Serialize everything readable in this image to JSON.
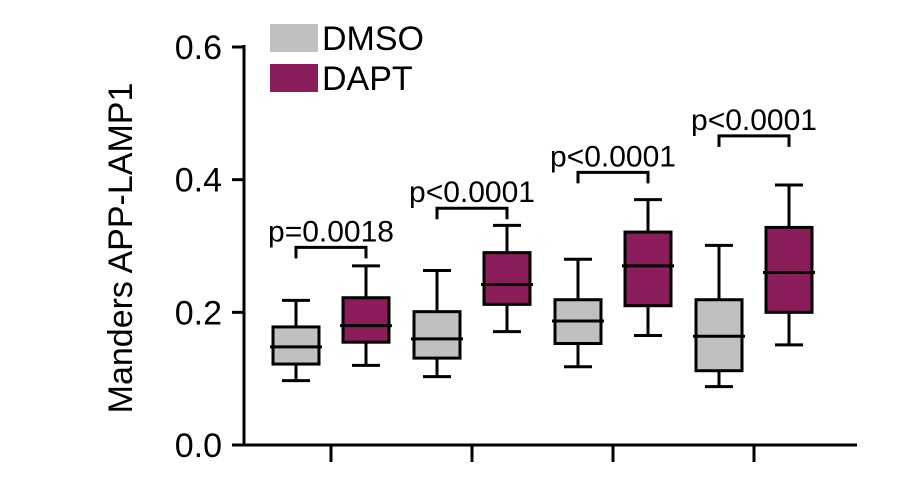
{
  "chart_data": {
    "type": "boxplot",
    "ylabel": "Manders APP-LAMP1",
    "xlabel": "",
    "ylim": [
      0.0,
      0.6
    ],
    "yticks": [
      0.0,
      0.2,
      0.4,
      0.6
    ],
    "ytick_labels": [
      "0.0",
      "0.2",
      "0.4",
      "0.6"
    ],
    "groups": 4,
    "series": [
      {
        "name": "DMSO",
        "color": "#c0c0c0",
        "boxes": [
          {
            "min": 0.097,
            "q1": 0.122,
            "median": 0.148,
            "q3": 0.178,
            "max": 0.218
          },
          {
            "min": 0.103,
            "q1": 0.131,
            "median": 0.16,
            "q3": 0.201,
            "max": 0.263
          },
          {
            "min": 0.118,
            "q1": 0.153,
            "median": 0.187,
            "q3": 0.219,
            "max": 0.28
          },
          {
            "min": 0.088,
            "q1": 0.112,
            "median": 0.164,
            "q3": 0.219,
            "max": 0.301
          }
        ]
      },
      {
        "name": "DAPT",
        "color": "#8c1d5b",
        "boxes": [
          {
            "min": 0.12,
            "q1": 0.155,
            "median": 0.18,
            "q3": 0.222,
            "max": 0.27
          },
          {
            "min": 0.171,
            "q1": 0.212,
            "median": 0.242,
            "q3": 0.29,
            "max": 0.331
          },
          {
            "min": 0.165,
            "q1": 0.21,
            "median": 0.27,
            "q3": 0.321,
            "max": 0.37
          },
          {
            "min": 0.151,
            "q1": 0.2,
            "median": 0.26,
            "q3": 0.328,
            "max": 0.392
          }
        ]
      }
    ],
    "annotations": [
      {
        "text": "p=0.0018",
        "bracket_y": 0.298
      },
      {
        "text": "p<0.0001",
        "bracket_y": 0.357
      },
      {
        "text": "p<0.0001",
        "bracket_y": 0.411
      },
      {
        "text": "p<0.0001",
        "bracket_y": 0.466
      }
    ],
    "legend": [
      "DMSO",
      "DAPT"
    ],
    "legend_position": "top-left"
  }
}
